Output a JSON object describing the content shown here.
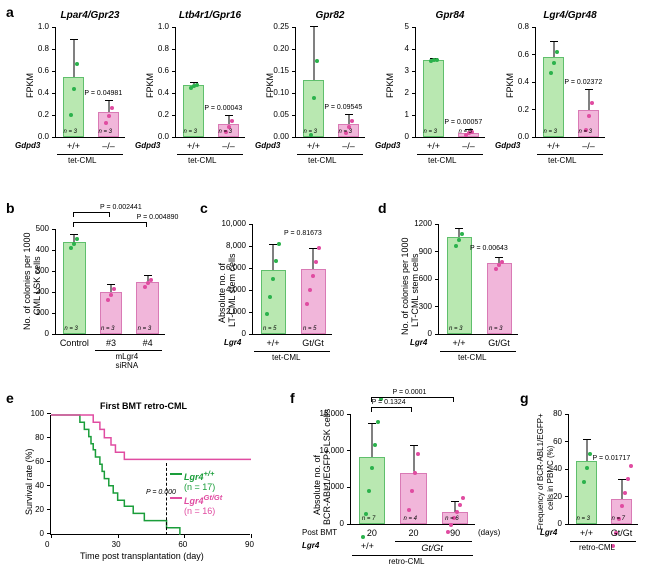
{
  "colors": {
    "green_fill": "#b9e8b1",
    "pink_fill": "#f1b6da",
    "green_dot": "#2bb24c",
    "pink_dot": "#e04ca1",
    "survival_green": "#1a9d3a",
    "survival_pink": "#e04ca1"
  },
  "a": {
    "label": "a",
    "charts": [
      {
        "title": "Lpar4/Gpr23",
        "ymax": 1.0,
        "ytick": 0.2,
        "vals": [
          0.55,
          0.23
        ],
        "errs": [
          0.33,
          0.1
        ],
        "p": "P = 0.04981",
        "ylabel": "FPKM"
      },
      {
        "title": "Ltb4r1/Gpr16",
        "ymax": 1.0,
        "ytick": 0.2,
        "vals": [
          0.47,
          0.12
        ],
        "errs": [
          0.02,
          0.07
        ],
        "p": "P = 0.00043",
        "ylabel": "FPKM"
      },
      {
        "title": "Gpr82",
        "ymax": 0.25,
        "ytick": 0.05,
        "vals": [
          0.13,
          0.03
        ],
        "errs": [
          0.12,
          0.02
        ],
        "p": "P = 0.09545",
        "ylabel": "FPKM"
      },
      {
        "title": "Gpr84",
        "ymax": 5.0,
        "ytick": 1.0,
        "vals": [
          3.5,
          0.2
        ],
        "errs": [
          0.05,
          0.1
        ],
        "p": "P = 0.00057",
        "ylabel": "FPKM"
      },
      {
        "title": "Lgr4/Gpr48",
        "ymax": 0.8,
        "ytick": 0.2,
        "vals": [
          0.58,
          0.2
        ],
        "errs": [
          0.11,
          0.14
        ],
        "p": "P = 0.02372",
        "ylabel": "FPKM"
      }
    ],
    "x_cats": [
      "+/+",
      "–/–"
    ],
    "n_label": "n = 3",
    "gene_label": "Gdpd3",
    "group_label": "tet-CML"
  },
  "b": {
    "label": "b",
    "ylabel": "No. of colonies per 1000\nCML LSK cells",
    "ymax": 500,
    "ytick": 100,
    "bars": [
      {
        "cat": "Control",
        "val": 440,
        "err": 30,
        "color": "green"
      },
      {
        "cat": "#3",
        "val": 200,
        "err": 35,
        "color": "pink"
      },
      {
        "cat": "#4",
        "val": 250,
        "err": 25,
        "color": "pink"
      }
    ],
    "p_vals": [
      "P = 0.002441",
      "P = 0.004890"
    ],
    "bottom_label": "mLgr4\nsiRNA",
    "n_label": "n = 3"
  },
  "c": {
    "label": "c",
    "ylabel": "Absolute no. of\nLT-CML stem cells",
    "ymax": 10000,
    "ytick": 2000,
    "bars": [
      {
        "cat": "+/+",
        "val": 5800,
        "err": 2300,
        "color": "green"
      },
      {
        "cat": "Gt/Gt",
        "val": 5900,
        "err": 1800,
        "color": "pink"
      }
    ],
    "p": "P = 0.81673",
    "gene_label": "Lgr4",
    "group_label": "tet-CML",
    "n_label": "n = 5"
  },
  "d": {
    "label": "d",
    "ylabel": "No. of colonies per 1000\nLT-CML stem cells",
    "ymax": 1200,
    "ytick": 300,
    "bars": [
      {
        "cat": "+/+",
        "val": 1060,
        "err": 90,
        "color": "green"
      },
      {
        "cat": "Gt/Gt",
        "val": 770,
        "err": 60,
        "color": "pink"
      }
    ],
    "p": "P = 0.00643",
    "gene_label": "Lgr4",
    "group_label": "tet-CML",
    "n_label": "n = 3"
  },
  "e": {
    "label": "e",
    "title": "First BMT retro-CML",
    "ylabel": "Survival rate (%)",
    "xlabel": "Time post transplantation (day)",
    "ymax": 100,
    "ytick": 20,
    "xmax": 90,
    "xtick": 30,
    "p": "P = 0.000",
    "legend": [
      {
        "text": "Lgr4",
        "sup": "+/+",
        "n": "(n = 17)",
        "color": "#1a9d3a"
      },
      {
        "text": "Lgr4",
        "sup": "Gt/Gt",
        "n": "(n = 16)",
        "color": "#e04ca1"
      }
    ],
    "series_green": [
      [
        0,
        100
      ],
      [
        12,
        100
      ],
      [
        13,
        94
      ],
      [
        15,
        88
      ],
      [
        17,
        82
      ],
      [
        18,
        76
      ],
      [
        19,
        71
      ],
      [
        20,
        65
      ],
      [
        22,
        59
      ],
      [
        23,
        53
      ],
      [
        24,
        47
      ],
      [
        26,
        41
      ],
      [
        28,
        35
      ],
      [
        30,
        29
      ],
      [
        33,
        24
      ],
      [
        37,
        18
      ],
      [
        42,
        12
      ],
      [
        52,
        6
      ],
      [
        58,
        0
      ]
    ],
    "series_pink": [
      [
        0,
        100
      ],
      [
        18,
        100
      ],
      [
        19,
        94
      ],
      [
        22,
        88
      ],
      [
        24,
        81
      ],
      [
        27,
        75
      ],
      [
        29,
        69
      ],
      [
        33,
        63
      ],
      [
        90,
        63
      ]
    ]
  },
  "f": {
    "label": "f",
    "ylabel": "Absolute no. of\nBCR-ABL1/EGFP+ LSK cells",
    "ymax": 15000,
    "ytick": 5000,
    "bars": [
      {
        "cat": "20",
        "val": 9200,
        "err": 4500,
        "color": "green",
        "n": "n = 7"
      },
      {
        "cat": "20",
        "val": 7000,
        "err": 3600,
        "color": "pink",
        "n": "n = 4"
      },
      {
        "cat": "90",
        "val": 1700,
        "err": 1300,
        "color": "pink",
        "n": "n = 6"
      }
    ],
    "p_vals": [
      "P = 0.1324",
      "P = 0.0001"
    ],
    "post_label": "Post BMT",
    "days_label": "(days)",
    "gene_label": "Lgr4",
    "gene_cats": [
      "+/+",
      "Gt/Gt"
    ],
    "group_label": "retro-CML"
  },
  "g": {
    "label": "g",
    "ylabel": "Frequency of BCR-ABL1/EGFP+\ncells in PBMC (%)",
    "ymax": 80,
    "ytick": 20,
    "bars": [
      {
        "cat": "+/+",
        "val": 46,
        "err": 15,
        "color": "green",
        "n": "n = 3"
      },
      {
        "cat": "Gt/Gt",
        "val": 18,
        "err": 14,
        "color": "pink",
        "n": "n = 7"
      }
    ],
    "p": "P = 0.01717",
    "gene_label": "Lgr4",
    "group_label": "retro-CML"
  }
}
